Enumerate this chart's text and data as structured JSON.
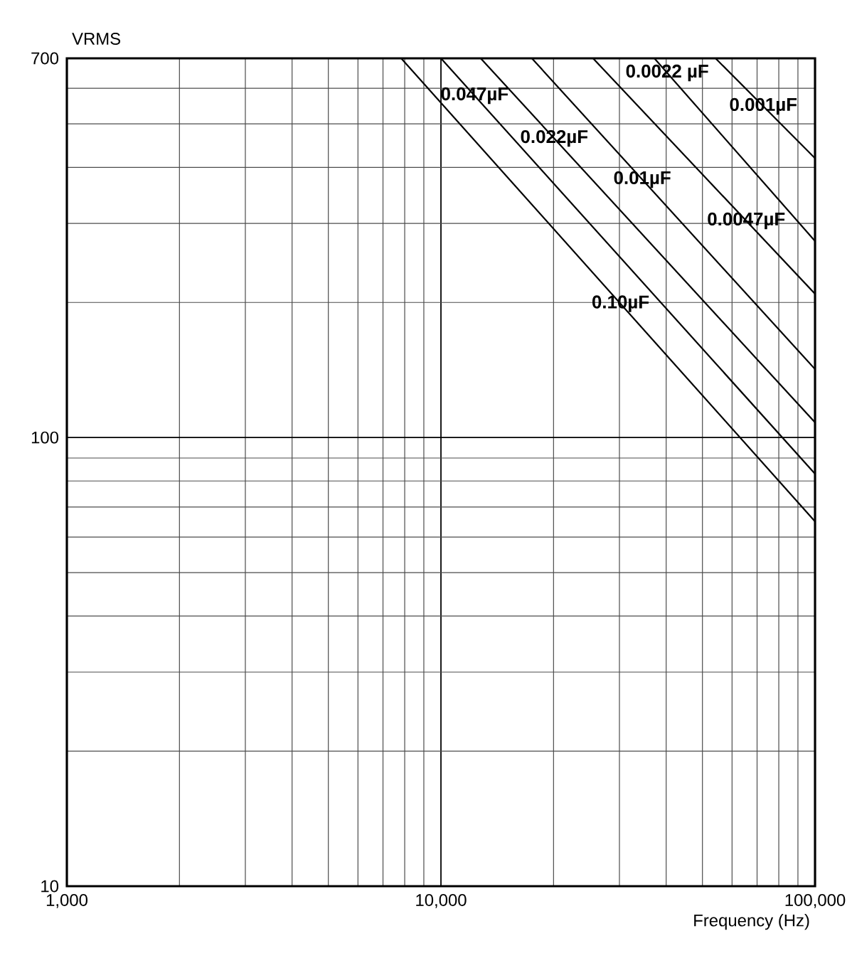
{
  "chart_data": {
    "type": "line",
    "xlabel": "Frequency (Hz)",
    "ylabel": "VRMS",
    "log": "xy",
    "grid": true,
    "marker": "none",
    "line_style": "solid",
    "xlim": [
      1000,
      100000
    ],
    "ylim": [
      10,
      700
    ],
    "xticks": [
      {
        "value": 1000,
        "label": "1,000"
      },
      {
        "value": 10000,
        "label": "10,000"
      },
      {
        "value": 100000,
        "label": "100,000"
      }
    ],
    "yticks": [
      10,
      100,
      700
    ],
    "series": [
      {
        "name": "0.10µF",
        "color": "#000000",
        "x": [
          7830,
          100000
        ],
        "values": [
          700,
          65
        ]
      },
      {
        "name": "0.047µF",
        "color": "#000000",
        "x": [
          10000,
          100000
        ],
        "values": [
          700,
          83
        ]
      },
      {
        "name": "0.022µF",
        "color": "#000000",
        "x": [
          12770,
          100000
        ],
        "values": [
          700,
          108
        ]
      },
      {
        "name": "0.01µF",
        "color": "#000000",
        "x": [
          17500,
          100000
        ],
        "values": [
          700,
          142
        ]
      },
      {
        "name": "0.0047µF",
        "color": "#000000",
        "x": [
          25500,
          100000
        ],
        "values": [
          700,
          209
        ]
      },
      {
        "name": "0.0022 µF",
        "color": "#000000",
        "x": [
          37200,
          100000
        ],
        "values": [
          700,
          274
        ]
      },
      {
        "name": "0.001µF",
        "color": "#000000",
        "x": [
          54200,
          100000
        ],
        "values": [
          700,
          419
        ]
      }
    ]
  }
}
